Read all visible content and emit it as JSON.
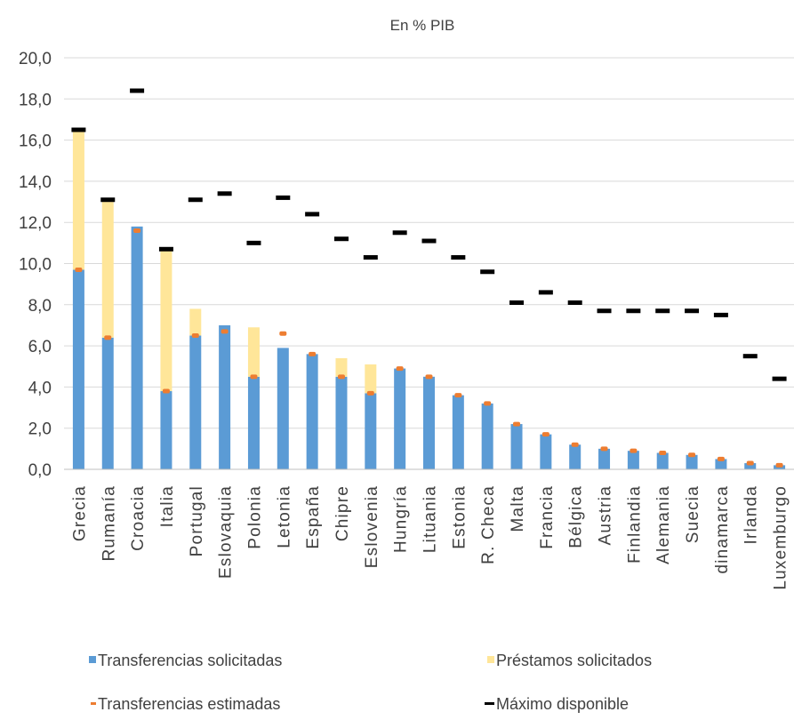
{
  "chart_data": {
    "type": "bar",
    "title": "En % PIB",
    "xlabel": "",
    "ylabel": "",
    "ylim": [
      0,
      20
    ],
    "yticks": [
      "0,0",
      "2,0",
      "4,0",
      "6,0",
      "8,0",
      "10,0",
      "12,0",
      "14,0",
      "16,0",
      "18,0",
      "20,0"
    ],
    "grid": true,
    "legend_position": "bottom",
    "categories": [
      "Grecia",
      "Rumanía",
      "Croacia",
      "Italia",
      "Portugal",
      "Eslovaquia",
      "Polonia",
      "Letonia",
      "España",
      "Chipre",
      "Eslovenia",
      "Hungría",
      "Lituania",
      "Estonia",
      "R. Checa",
      "Malta",
      "Francia",
      "Bélgica",
      "Austria",
      "Finlandia",
      "Alemania",
      "Suecia",
      "dinamarca",
      "Irlanda",
      "Luxemburgo"
    ],
    "series": [
      {
        "name": "Transferencias solicitadas",
        "kind": "stacked-bar",
        "color": "#5b9bd5",
        "values": [
          9.7,
          6.4,
          11.8,
          3.8,
          6.5,
          7.0,
          4.5,
          5.9,
          5.6,
          4.5,
          3.7,
          4.9,
          4.5,
          3.6,
          3.2,
          2.2,
          1.7,
          1.2,
          1.0,
          0.9,
          0.8,
          0.7,
          0.5,
          0.3,
          0.2
        ]
      },
      {
        "name": "Préstamos solicitados",
        "kind": "stacked-bar",
        "color": "#ffe699",
        "values": [
          6.8,
          6.6,
          0.0,
          6.9,
          1.3,
          0.0,
          2.4,
          0.0,
          0.0,
          0.9,
          1.4,
          0.0,
          0.0,
          0.0,
          0.0,
          0.0,
          0.0,
          0.0,
          0.0,
          0.0,
          0.0,
          0.0,
          0.0,
          0.0,
          0.0
        ]
      },
      {
        "name": "Transferencias estimadas",
        "kind": "marker",
        "color": "#ed7d31",
        "values": [
          9.7,
          6.4,
          11.6,
          3.8,
          6.5,
          6.7,
          4.5,
          6.6,
          5.6,
          4.5,
          3.7,
          4.9,
          4.5,
          3.6,
          3.2,
          2.2,
          1.7,
          1.2,
          1.0,
          0.9,
          0.8,
          0.7,
          0.5,
          0.3,
          0.2
        ]
      },
      {
        "name": "Máximo disponible",
        "kind": "marker",
        "color": "#000000",
        "values": [
          16.5,
          13.1,
          18.4,
          10.7,
          13.1,
          13.4,
          11.0,
          13.2,
          12.4,
          11.2,
          10.3,
          11.5,
          11.1,
          10.3,
          9.6,
          8.1,
          8.6,
          8.1,
          7.7,
          7.7,
          7.7,
          7.7,
          7.5,
          5.5,
          4.4
        ]
      }
    ]
  }
}
